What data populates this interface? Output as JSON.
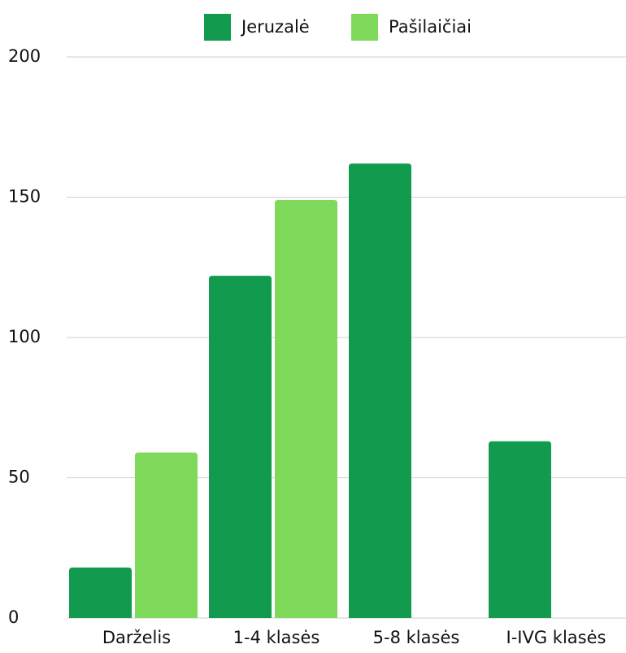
{
  "chart_data": {
    "type": "bar",
    "categories": [
      "Darželis",
      "1-4 klasės",
      "5-8 klasės",
      "I-IVG klasės"
    ],
    "series": [
      {
        "name": "Jeruzalė",
        "color": "#129a4f",
        "values": [
          18,
          122,
          162,
          63
        ]
      },
      {
        "name": "Pašilaičiai",
        "color": "#7fd95a",
        "values": [
          59,
          149,
          null,
          null
        ]
      }
    ],
    "ylim": [
      0,
      200
    ],
    "yticks": [
      0,
      50,
      100,
      150,
      200
    ],
    "grid": true,
    "legend": "top"
  }
}
